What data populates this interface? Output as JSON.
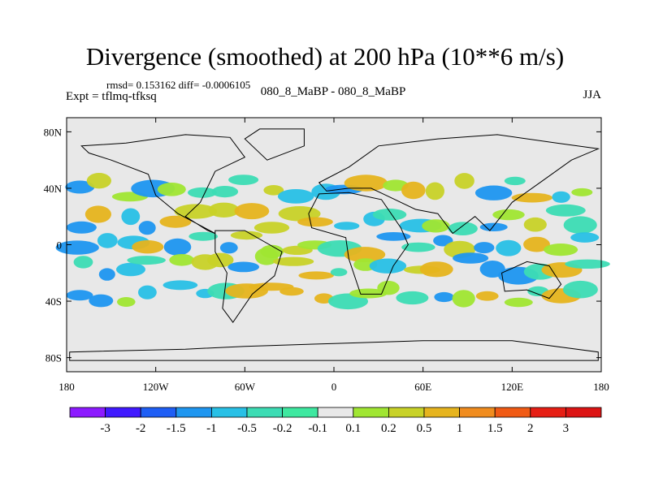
{
  "chart_data": {
    "type": "heatmap",
    "title": "Divergence (smoothed) at 200 hPa (10**6 m/s)",
    "stats_label": "rmsd= 0.153162 diff= -0.0006105",
    "experiment_label": "Expt = tflmq-tfksq",
    "subtitle": "080_8_MaBP - 080_8_MaBP",
    "season": "JJA",
    "x_ticks": [
      "180",
      "120W",
      "60W",
      "0",
      "60E",
      "120E",
      "180"
    ],
    "y_ticks": [
      "80N",
      "40N",
      "0",
      "40S",
      "80S"
    ],
    "lon_range": [
      -180,
      180
    ],
    "lat_range": [
      -90,
      90
    ],
    "colorbar": {
      "labels": [
        "-3",
        "-2",
        "-1.5",
        "-1",
        "-0.5",
        "-0.2",
        "-0.1",
        "0.1",
        "0.2",
        "0.5",
        "1",
        "1.5",
        "2",
        "3"
      ],
      "colors": [
        "#8c1aff",
        "#4019ff",
        "#1e5ef5",
        "#1e96f0",
        "#28c0e6",
        "#3cdcb4",
        "#3ee8a0",
        "#e8e8e8",
        "#a0e632",
        "#c8d228",
        "#e6b41e",
        "#f08c1e",
        "#f05a14",
        "#e61e14",
        "#dc1414"
      ]
    },
    "features": [
      {
        "name": "band-north-40",
        "lat": 40,
        "level": 8,
        "pattern": "streaks"
      },
      {
        "name": "band-north-20",
        "lat": 18,
        "level": 5,
        "pattern": "streaks"
      },
      {
        "name": "band-equator",
        "lat": 0,
        "level": 9,
        "pattern": "streaks"
      },
      {
        "name": "band-south-15",
        "lat": -15,
        "level": 4,
        "pattern": "streaks"
      },
      {
        "name": "band-south-35",
        "lat": -35,
        "level": 8,
        "pattern": "streaks"
      }
    ]
  },
  "colors": {
    "background": "#ffffff",
    "ocean_gray": "#e8e8e8",
    "outline": "#000000"
  }
}
